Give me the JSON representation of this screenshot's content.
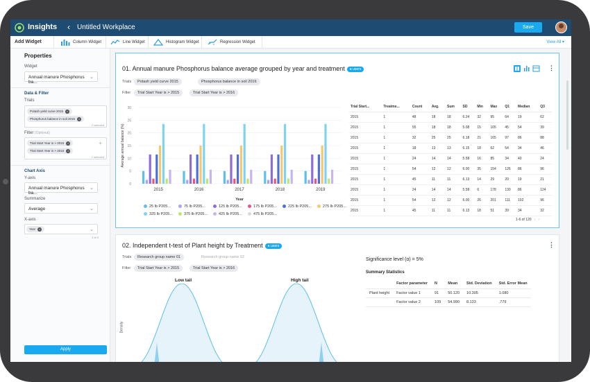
{
  "app": {
    "name": "Insights",
    "workplace": "Untitled Workplace",
    "save_label": "Save"
  },
  "toolbar": {
    "add_widget": "Add Widget",
    "items": [
      "Column Widget",
      "Line Widget",
      "Histogram Widget",
      "Regression Widget"
    ],
    "view_all": "View All"
  },
  "sidebar": {
    "properties": "Properties",
    "widget_label": "Widget",
    "widget_value": "Annual manure Phosphorus ba...",
    "data_filter": "Data & Filter",
    "trials_label": "Trials",
    "trials": [
      "Potash yield curve 2015",
      "Phosphorus balance in soil 2016"
    ],
    "trials_count": "2 selected",
    "filter_label": "Filter",
    "filter_optional": "(Optional)",
    "filters": [
      "Trial Start Year is > 2015",
      "Trial Start Year is > 2016"
    ],
    "filters_count": "1 selected",
    "chart_axis": "Chart Axis",
    "yaxis_label": "Y-axis",
    "yaxis_value": "Annual manure Phosphorus ba...",
    "summarize_label": "Summarize",
    "summarize_value": "Average",
    "xaxis_label": "X-axis",
    "xaxis_chip": "Year",
    "xaxis_count": "1 of 3",
    "apply": "Apply"
  },
  "card1": {
    "title": "01. Annual manure Phosphorus balance average grouped by year and treatment",
    "badge": "users",
    "trials_label": "Trials",
    "trials": [
      "Potash yield curve 2015",
      "Phosphorus balance in soil 2016"
    ],
    "filter_label": "Filter",
    "filters": [
      "Trial Start Year is > 2015",
      "Trial Start Year is > 2016"
    ],
    "table": {
      "headers": [
        "Trial Start...",
        "Treatme...",
        "Count",
        "Avg.",
        "Sum",
        "SD",
        "Min",
        "Max",
        "Q1",
        "Median",
        "Q3"
      ],
      "rows": [
        [
          "2015",
          "1",
          "48",
          "18",
          "18",
          "6.24",
          "32",
          "95",
          "64",
          "19",
          "62"
        ],
        [
          "2015",
          "1",
          "55",
          "18",
          "18",
          "5.08",
          "15",
          "105",
          "45",
          "54",
          "39"
        ],
        [
          "2015",
          "1",
          "32",
          "25",
          "25",
          "6.18",
          "21",
          "165",
          "97",
          "86",
          "88"
        ],
        [
          "2015",
          "1",
          "18",
          "13",
          "13",
          "6.15",
          "18",
          "62",
          "54",
          "34",
          "46"
        ],
        [
          "2015",
          "1",
          "24",
          "14",
          "14",
          "5.58",
          "16",
          "85",
          "34",
          "40",
          "24"
        ],
        [
          "2015",
          "1",
          "54",
          "12",
          "12",
          "6.00",
          "35",
          "154",
          "126",
          "86",
          "96"
        ],
        [
          "2015",
          "1",
          "45",
          "11",
          "11",
          "6.13",
          "14",
          "29",
          "20",
          "19",
          "21"
        ],
        [
          "2015",
          "1",
          "24",
          "14",
          "14",
          "5.58",
          "6",
          "178",
          "130",
          "86",
          "124"
        ],
        [
          "2015",
          "1",
          "54",
          "12",
          "12",
          "6.00",
          "26",
          "201",
          "111",
          "102",
          "96"
        ],
        [
          "2015",
          "1",
          "45",
          "11",
          "11",
          "6.13",
          "18",
          "51",
          "39",
          "34",
          "32"
        ]
      ],
      "pager": "1-6 of 120"
    }
  },
  "card2": {
    "title": "02. Independent t-test of Plant height by Treatment",
    "badge": "users",
    "trials_label": "Trials",
    "trials": [
      "Research group name 01",
      "Research group name 02"
    ],
    "filter_label": "Filter",
    "filters": [
      "Trial Start Year is > 2015",
      "Trial Start Year is > 2016"
    ],
    "low_tail": "Low tail",
    "high_tail": "High tail",
    "density_label": "Density",
    "significance": "Significance level (α) = 5%",
    "summary_title": "Summary Statistics",
    "summary_headers": [
      "",
      "Factor parameter",
      "N",
      "Mean",
      "Std. Deviation",
      "Std. Error Mean"
    ],
    "summary_rows": [
      [
        "Plant height",
        "Factor value 1",
        "91",
        "50.120",
        "10.305",
        "1.080"
      ],
      [
        "",
        "Factor value 2",
        "109",
        "54.990",
        "8.133",
        ".779"
      ]
    ]
  },
  "chart_data": {
    "type": "bar",
    "title": "",
    "xlabel": "Year",
    "ylabel": "Average annual balance (%)",
    "ylim": [
      0,
      30
    ],
    "yticks": [
      0,
      5,
      10,
      15,
      20,
      25,
      30
    ],
    "categories": [
      "2015",
      "2016",
      "2017",
      "2018",
      "2019"
    ],
    "legend_position": "bottom",
    "series": [
      {
        "name": "25 lb P205...",
        "color": "#5bc0eb",
        "values": [
          5,
          5,
          5,
          5,
          5
        ]
      },
      {
        "name": "75 lb P205...",
        "color": "#a3a6f7",
        "values": [
          1.5,
          1.5,
          1.5,
          1.5,
          1.5
        ]
      },
      {
        "name": "125 lb P205...",
        "color": "#8e6bd8",
        "values": [
          11.5,
          11.5,
          11.5,
          11.5,
          11.5
        ]
      },
      {
        "name": "175 lb P205...",
        "color": "#e75480",
        "values": [
          2,
          2,
          2,
          2,
          2
        ]
      },
      {
        "name": "225 lb P205...",
        "color": "#4a6fd8",
        "values": [
          11.5,
          11.5,
          11.5,
          11.5,
          11.5
        ]
      },
      {
        "name": "275 lb P205...",
        "color": "#f5c86b",
        "values": [
          15,
          15,
          15,
          15,
          15
        ]
      },
      {
        "name": "325 lb P205...",
        "color": "#7ed3f4",
        "values": [
          23.5,
          23.5,
          23.5,
          23.5,
          23.5
        ]
      },
      {
        "name": "375 lb P205...",
        "color": "#b9e86a",
        "values": [
          2,
          2,
          2,
          2,
          2
        ]
      },
      {
        "name": "425 lb P205...",
        "color": "#c9b3f0",
        "values": [
          5.5,
          5.5,
          5.5,
          5.5,
          5.5
        ]
      },
      {
        "name": "475 lb P205...",
        "color": "#d7dbe0",
        "values": [
          0,
          0,
          0,
          0,
          0
        ]
      }
    ]
  }
}
